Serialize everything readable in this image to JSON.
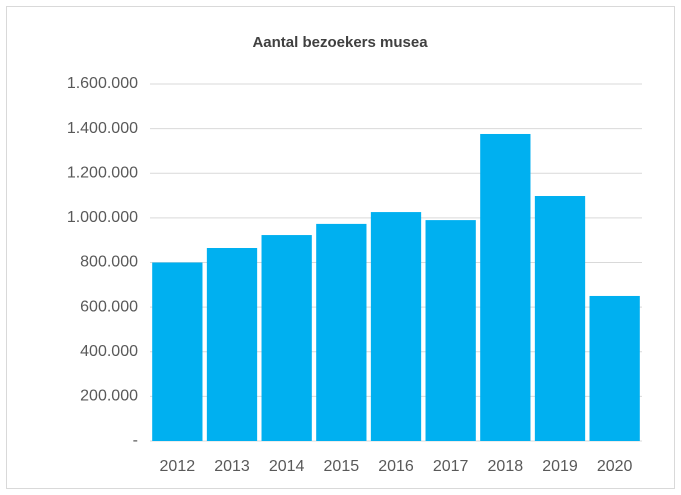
{
  "chart_data": {
    "type": "bar",
    "title": "Aantal bezoekers musea",
    "categories": [
      "2012",
      "2013",
      "2014",
      "2015",
      "2016",
      "2017",
      "2018",
      "2019",
      "2020"
    ],
    "values": [
      800000,
      865000,
      923000,
      973000,
      1026000,
      990000,
      1376000,
      1098000,
      650000
    ],
    "color": "#00b0f0",
    "ylim": [
      0,
      1600000
    ],
    "yticks": [
      {
        "value": 0,
        "label": "-"
      },
      {
        "value": 200000,
        "label": "200.000"
      },
      {
        "value": 400000,
        "label": "400.000"
      },
      {
        "value": 600000,
        "label": "600.000"
      },
      {
        "value": 800000,
        "label": "800.000"
      },
      {
        "value": 1000000,
        "label": "1.000.000"
      },
      {
        "value": 1200000,
        "label": "1.200.000"
      },
      {
        "value": 1400000,
        "label": "1.400.000"
      },
      {
        "value": 1600000,
        "label": "1.600.000"
      }
    ],
    "grid": true
  }
}
